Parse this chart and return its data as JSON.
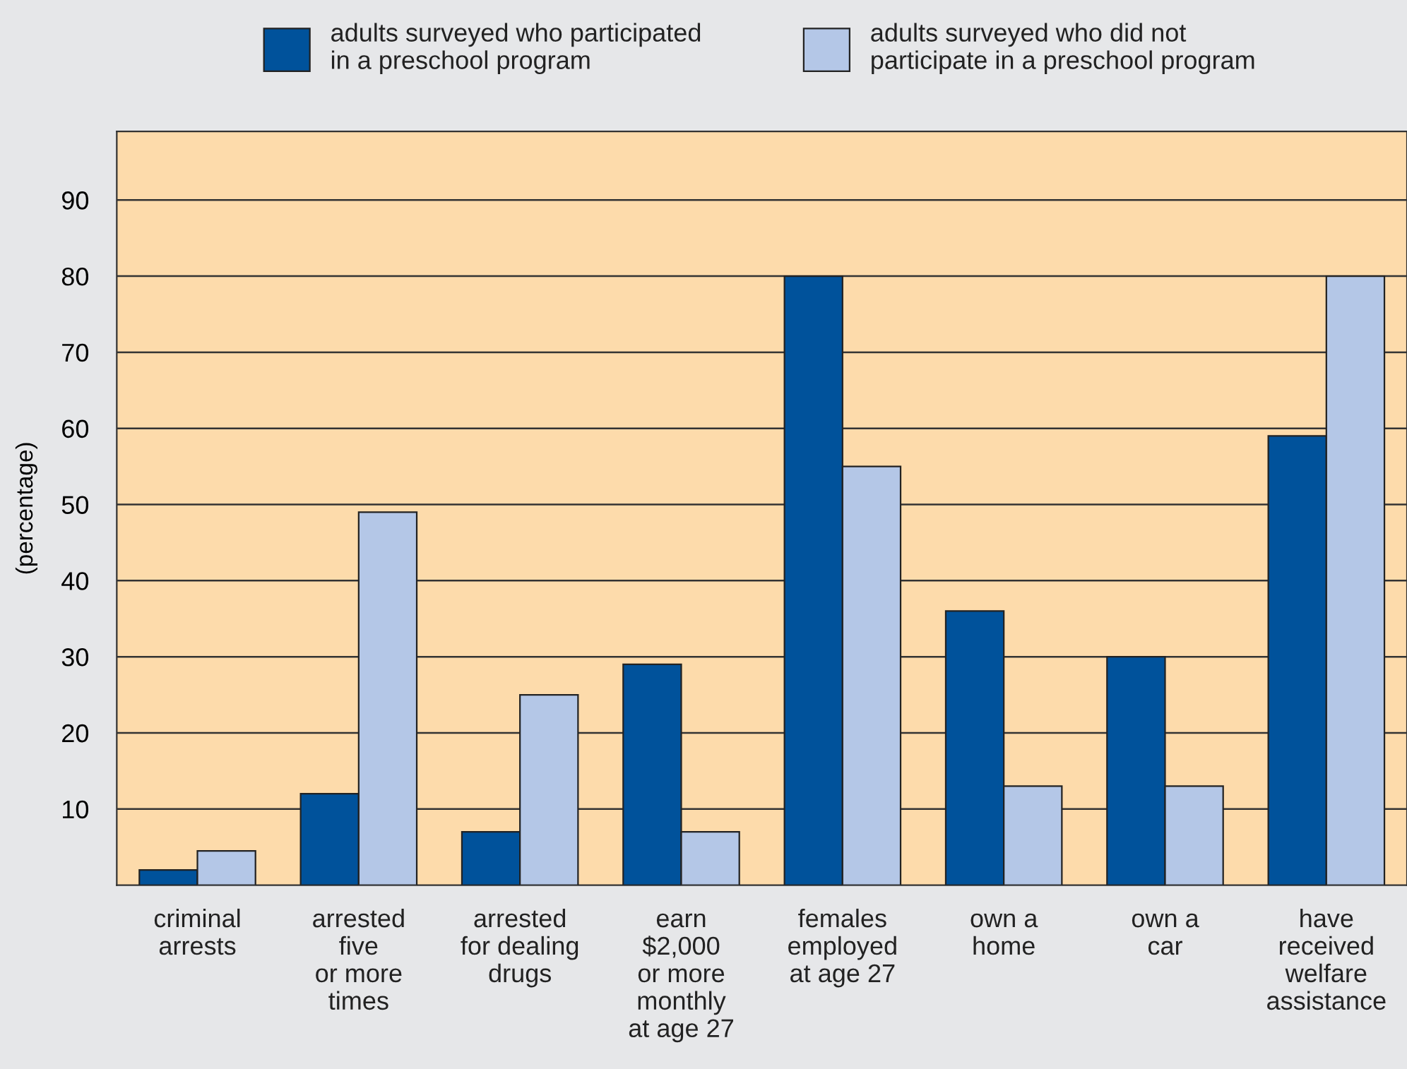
{
  "chart_data": {
    "type": "bar",
    "categories": [
      "criminal\narrests",
      "arrested\nfive\nor more\ntimes",
      "arrested\nfor dealing\ndrugs",
      "earn\n$2,000\nor more\nmonthly\nat age 27",
      "females\nemployed\nat age 27",
      "own a\nhome",
      "own a\ncar",
      "have\nreceived\nwelfare\nassistance"
    ],
    "series": [
      {
        "name": "adults surveyed who participated\nin a preschool program",
        "color": "#00529b",
        "values": [
          2,
          12,
          7,
          29,
          80,
          36,
          30,
          59
        ]
      },
      {
        "name": "adults surveyed who did not\nparticipate in a preschool program",
        "color": "#b4c7e7",
        "values": [
          4.5,
          49,
          25,
          7,
          55,
          13,
          13,
          80
        ]
      }
    ],
    "ylabel": "(percentage)",
    "ylim": [
      0,
      99
    ],
    "yticks": [
      10,
      20,
      30,
      40,
      50,
      60,
      70,
      80,
      90
    ],
    "grid": "y",
    "legend": "top"
  }
}
